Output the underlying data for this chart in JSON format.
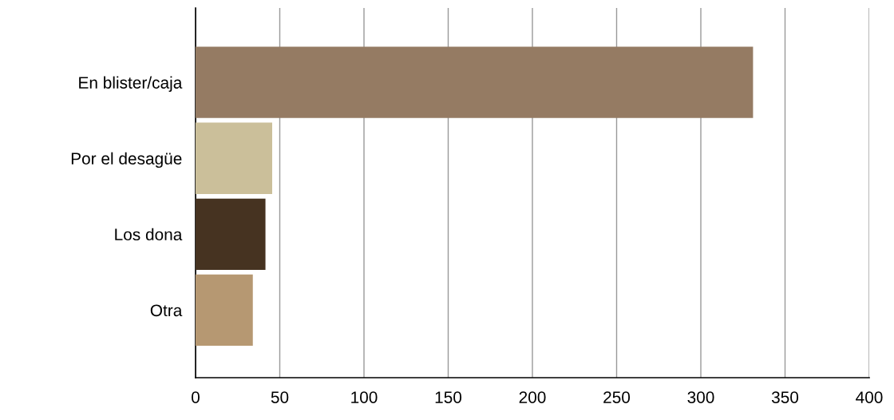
{
  "chart_data": {
    "type": "bar",
    "orientation": "horizontal",
    "categories": [
      "En blister/caja",
      "Por el desagüe",
      "Los dona",
      "Otra"
    ],
    "values": [
      331,
      45.5,
      41.5,
      34
    ],
    "colors": [
      "#957b63",
      "#cbbf9a",
      "#463321",
      "#b69872"
    ],
    "xlim": [
      0,
      400
    ],
    "xticks": [
      0,
      50,
      100,
      150,
      200,
      250,
      300,
      350,
      400
    ],
    "grid": "x"
  }
}
